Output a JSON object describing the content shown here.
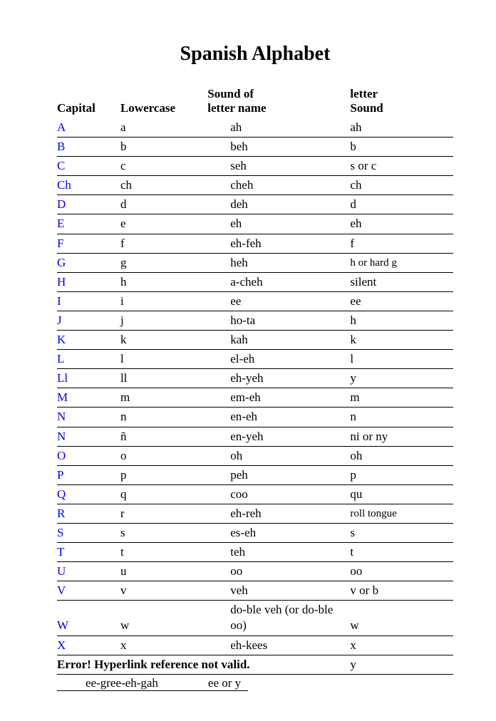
{
  "title": "Spanish Alphabet",
  "columns": {
    "capital": "Capital",
    "lowercase": "Lowercase",
    "sound_name_l1": "Sound of",
    "sound_name_l2": "letter name",
    "letter_sound_l1": "letter",
    "letter_sound_l2": "Sound"
  },
  "rows": [
    {
      "capital": "A",
      "lower": "a",
      "sound": "ah",
      "letter": "ah"
    },
    {
      "capital": "B",
      "lower": "b",
      "sound": "beh",
      "letter": "b"
    },
    {
      "capital": "C",
      "lower": "c",
      "sound": "seh",
      "letter": "s or c"
    },
    {
      "capital": "Ch",
      "lower": "ch",
      "sound": "cheh",
      "letter": "ch"
    },
    {
      "capital": "D",
      "lower": "d",
      "sound": "deh",
      "letter": "d"
    },
    {
      "capital": "E",
      "lower": "e",
      "sound": "eh",
      "letter": "eh"
    },
    {
      "capital": "F",
      "lower": "f",
      "sound": "eh-feh",
      "letter": "f"
    },
    {
      "capital": "G",
      "lower": "g",
      "sound": "heh",
      "letter": "h or hard g",
      "letter_small": true
    },
    {
      "capital": "H",
      "lower": "h",
      "sound": "a-cheh",
      "letter": "silent"
    },
    {
      "capital": "I",
      "lower": "i",
      "sound": "ee",
      "letter": "ee"
    },
    {
      "capital": "J",
      "lower": "j",
      "sound": "ho-ta",
      "letter": "h"
    },
    {
      "capital": "K",
      "lower": "k",
      "sound": "kah",
      "letter": "k"
    },
    {
      "capital": "L",
      "lower": "l",
      "sound": "el-eh",
      "letter": "l"
    },
    {
      "capital": "Ll",
      "lower": "ll",
      "sound": "eh-yeh",
      "letter": "y"
    },
    {
      "capital": "M",
      "lower": "m",
      "sound": "em-eh",
      "letter": "m"
    },
    {
      "capital": "N",
      "lower": "n",
      "sound": "en-eh",
      "letter": "n"
    },
    {
      "capital": "N",
      "lower": "ñ",
      "sound": "en-yeh",
      "letter": "ni or ny"
    },
    {
      "capital": "O",
      "lower": "o",
      "sound": "oh",
      "letter": "oh"
    },
    {
      "capital": "P",
      "lower": "p",
      "sound": "peh",
      "letter": "p"
    },
    {
      "capital": "Q",
      "lower": "q",
      "sound": "coo",
      "letter": "qu"
    },
    {
      "capital": "R",
      "lower": "r",
      "sound": "eh-reh",
      "letter": "roll tongue",
      "letter_small": true
    },
    {
      "capital": "S",
      "lower": "s",
      "sound": "es-eh",
      "letter": "s"
    },
    {
      "capital": "T",
      "lower": "t",
      "sound": "teh",
      "letter": "t"
    },
    {
      "capital": "U",
      "lower": "u",
      "sound": "oo",
      "letter": "oo"
    },
    {
      "capital": "V",
      "lower": "v",
      "sound": "veh",
      "letter": "v or b"
    },
    {
      "capital": "W",
      "lower": "w",
      "sound": "do-ble veh (or do-ble oo)",
      "letter": "w"
    },
    {
      "capital": "X",
      "lower": "x",
      "sound": "eh-kees",
      "letter": "x"
    }
  ],
  "error_text": "Error! Hyperlink reference not valid.",
  "error_letter": "y",
  "extra_sound": "ee-gree-eh-gah",
  "extra_letter": "ee or y",
  "style": {
    "link_color": "#0000ee",
    "text_color": "#000000",
    "border_color": "#000000",
    "background": "#ffffff",
    "title_fontsize": 28,
    "body_fontsize": 17,
    "small_fontsize": 15,
    "font_family": "Times New Roman"
  }
}
